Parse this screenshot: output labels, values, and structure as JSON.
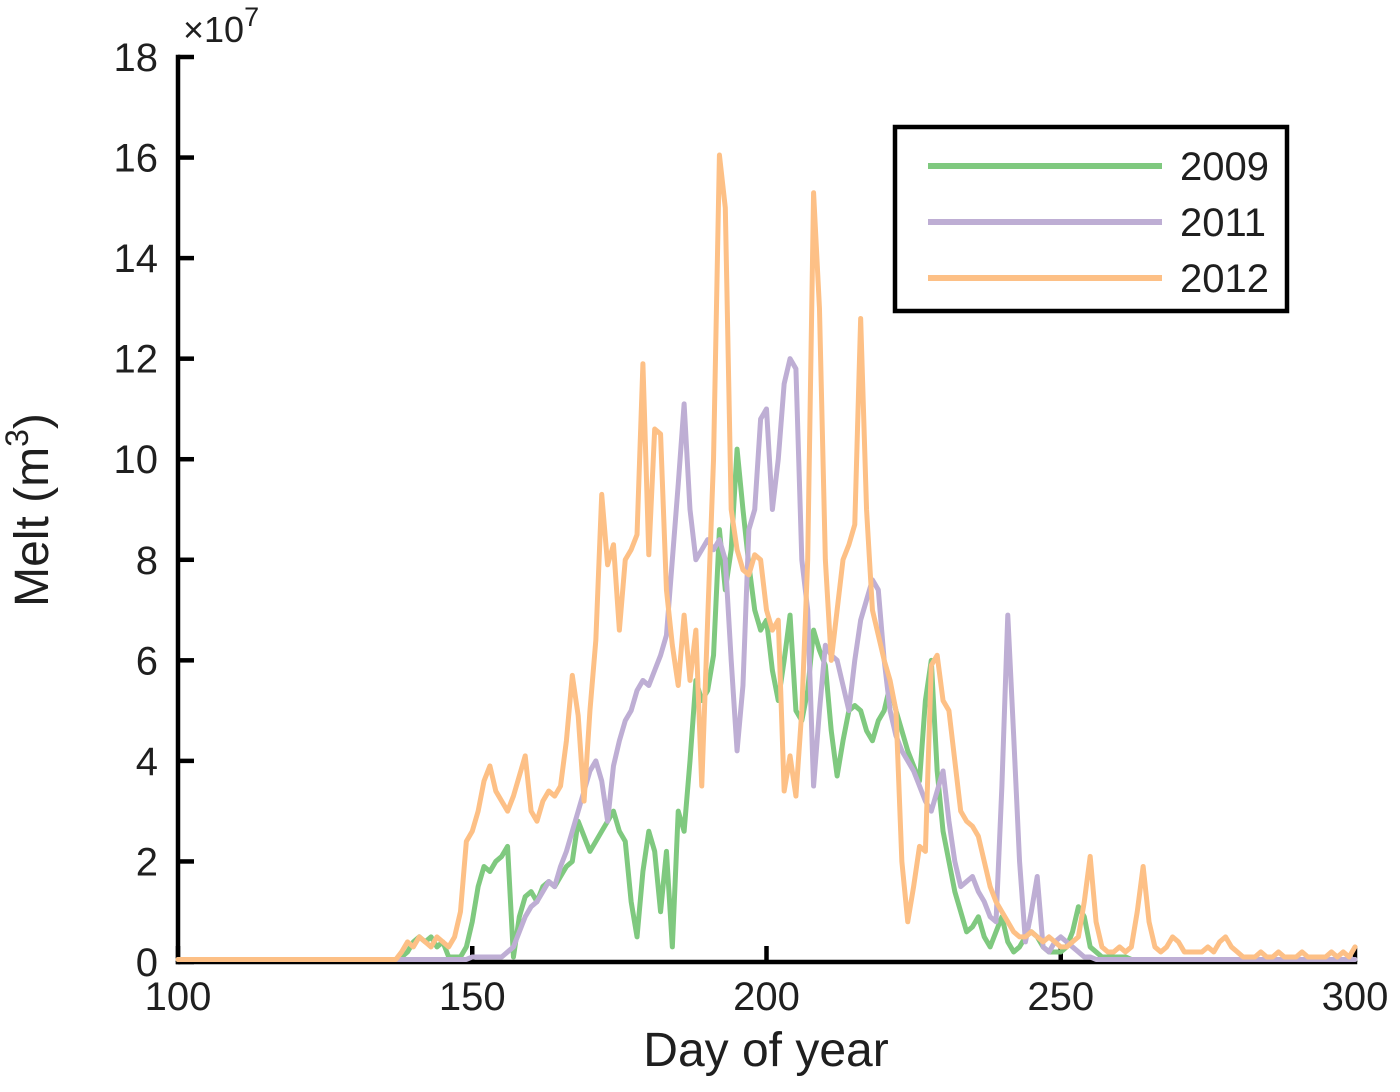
{
  "chart_data": {
    "type": "line",
    "title": "",
    "xlabel": "Day of year",
    "ylabel": "Melt (m³)",
    "ylabel_parts": {
      "main": "Melt (m",
      "sup": "3",
      "close": ")"
    },
    "y_multiplier": {
      "base": "×10",
      "exp": "7"
    },
    "x_range": [
      100,
      300
    ],
    "y_range": [
      0,
      18
    ],
    "x_ticks": [
      100,
      150,
      200,
      250,
      300
    ],
    "y_ticks": [
      0,
      2,
      4,
      6,
      8,
      10,
      12,
      14,
      16,
      18
    ],
    "y_unit_scale": "1e7",
    "grid": "off",
    "legend_position": "top-right",
    "baseline": 0.05,
    "series": [
      {
        "name": "2009",
        "color": "#7fc97f",
        "x_start": 138,
        "y": [
          0.1,
          0.2,
          0.4,
          0.5,
          0.4,
          0.5,
          0.3,
          0.4,
          0.1,
          0.1,
          0.1,
          0.3,
          0.8,
          1.5,
          1.9,
          1.8,
          2.0,
          2.1,
          2.3,
          0.1,
          0.9,
          1.3,
          1.4,
          1.2,
          1.5,
          1.6,
          1.5,
          1.7,
          1.9,
          2.0,
          2.8,
          2.5,
          2.2,
          2.4,
          2.6,
          2.8,
          3.0,
          2.6,
          2.4,
          1.2,
          0.5,
          1.8,
          2.6,
          2.2,
          1.0,
          2.2,
          0.3,
          3.0,
          2.6,
          4.0,
          5.6,
          5.2,
          5.4,
          6.1,
          8.6,
          7.4,
          8.2,
          10.2,
          9.0,
          7.9,
          7.0,
          6.6,
          6.8,
          5.8,
          5.2,
          6.0,
          6.9,
          5.0,
          4.8,
          5.4,
          6.6,
          6.2,
          5.9,
          4.6,
          3.7,
          4.4,
          5.0,
          5.1,
          5.0,
          4.6,
          4.4,
          4.8,
          5.0,
          5.5,
          5.0,
          4.6,
          4.2,
          3.9,
          3.6,
          5.2,
          6.0,
          3.8,
          2.6,
          2.0,
          1.4,
          1.0,
          0.6,
          0.7,
          0.9,
          0.5,
          0.3,
          0.6,
          0.9,
          0.4,
          0.2,
          0.3,
          0.5,
          0.6,
          0.5,
          0.3,
          0.2,
          0.2,
          0.2,
          0.3,
          0.6,
          1.1,
          0.9,
          0.3,
          0.2,
          0.1,
          0.1,
          0.1,
          0.1,
          0.1
        ]
      },
      {
        "name": "2011",
        "color": "#beaed4",
        "x_start": 150,
        "y": [
          0.1,
          0.1,
          0.1,
          0.1,
          0.1,
          0.1,
          0.2,
          0.3,
          0.6,
          0.9,
          1.1,
          1.2,
          1.4,
          1.6,
          1.5,
          1.9,
          2.2,
          2.6,
          3.0,
          3.4,
          3.8,
          4.0,
          3.6,
          2.8,
          3.9,
          4.4,
          4.8,
          5.0,
          5.4,
          5.6,
          5.5,
          5.8,
          6.1,
          6.5,
          8.0,
          9.5,
          11.1,
          9.0,
          8.0,
          8.2,
          8.4,
          8.2,
          8.4,
          8.0,
          6.0,
          4.2,
          5.5,
          8.6,
          9.0,
          10.8,
          11.0,
          9.0,
          10.0,
          11.5,
          12.0,
          11.8,
          8.0,
          7.0,
          3.5,
          5.0,
          6.3,
          6.1,
          6.0,
          5.5,
          5.0,
          6.0,
          6.8,
          7.2,
          7.6,
          7.4,
          6.0,
          5.0,
          4.5,
          4.2,
          4.0,
          3.8,
          3.5,
          3.2,
          3.0,
          3.4,
          3.8,
          2.8,
          2.0,
          1.5,
          1.6,
          1.7,
          1.4,
          1.2,
          0.9,
          0.8,
          3.5,
          6.9,
          4.5,
          2.0,
          0.4,
          1.0,
          1.7,
          0.3,
          0.2,
          0.4,
          0.5,
          0.4,
          0.3,
          0.2,
          0.1,
          0.1
        ]
      },
      {
        "name": "2012",
        "color": "#fdc086",
        "x_start": 138,
        "y": [
          0.2,
          0.4,
          0.3,
          0.5,
          0.4,
          0.3,
          0.5,
          0.4,
          0.3,
          0.5,
          1.0,
          2.4,
          2.6,
          3.0,
          3.6,
          3.9,
          3.4,
          3.2,
          3.0,
          3.3,
          3.7,
          4.1,
          3.0,
          2.8,
          3.2,
          3.4,
          3.3,
          3.5,
          4.4,
          5.7,
          4.9,
          3.2,
          5.0,
          6.4,
          9.3,
          7.9,
          8.3,
          6.6,
          8.0,
          8.2,
          8.5,
          11.9,
          8.1,
          10.6,
          10.5,
          7.4,
          6.3,
          5.5,
          6.9,
          5.6,
          6.6,
          3.5,
          6.8,
          10.0,
          16.05,
          15.0,
          9.0,
          8.2,
          7.8,
          7.7,
          8.1,
          8.0,
          7.0,
          6.6,
          6.8,
          3.4,
          4.1,
          3.3,
          5.0,
          8.0,
          15.3,
          13.0,
          8.0,
          6.0,
          7.0,
          8.0,
          8.3,
          8.7,
          12.8,
          9.0,
          7.0,
          6.5,
          6.0,
          5.6,
          5.0,
          2.0,
          0.8,
          1.5,
          2.3,
          2.2,
          5.9,
          6.1,
          5.2,
          5.0,
          4.0,
          3.0,
          2.8,
          2.7,
          2.5,
          2.0,
          1.5,
          1.2,
          1.0,
          0.8,
          0.6,
          0.5,
          0.5,
          0.6,
          0.5,
          0.4,
          0.5,
          0.4,
          0.3,
          0.3,
          0.4,
          0.5,
          1.2,
          2.1,
          0.8,
          0.3,
          0.2,
          0.2,
          0.3,
          0.2,
          0.3,
          1.0,
          1.9,
          0.8,
          0.3,
          0.2,
          0.3,
          0.5,
          0.4,
          0.2,
          0.2,
          0.2,
          0.2,
          0.3,
          0.2,
          0.4,
          0.5,
          0.3,
          0.2,
          0.1,
          0.1,
          0.1,
          0.2,
          0.1,
          0.1,
          0.2,
          0.1,
          0.1,
          0.1,
          0.2,
          0.1,
          0.1,
          0.1,
          0.1,
          0.2,
          0.1,
          0.2,
          0.1,
          0.3
        ]
      }
    ]
  }
}
